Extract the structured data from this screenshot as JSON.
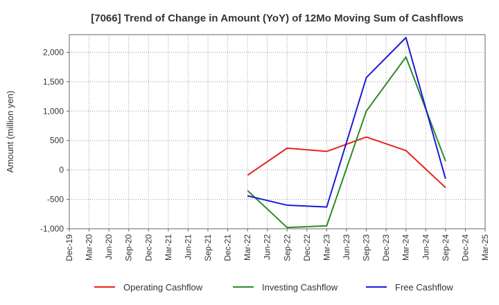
{
  "chart_data": {
    "type": "line",
    "title": "[7066]  Trend of Change in Amount (YoY) of 12Mo Moving Sum of Cashflows",
    "xlabel": "",
    "ylabel": "Amount (million yen)",
    "ylim": [
      -1000,
      2300
    ],
    "yticks": [
      -1000,
      -500,
      0,
      500,
      1000,
      1500,
      2000
    ],
    "ytick_labels": [
      "-1,000",
      "-500",
      "0",
      "500",
      "1,000",
      "1,500",
      "2,000"
    ],
    "categories": [
      "Dec-19",
      "Mar-20",
      "Jun-20",
      "Sep-20",
      "Dec-20",
      "Mar-21",
      "Jun-21",
      "Sep-21",
      "Dec-21",
      "Mar-22",
      "Jun-22",
      "Sep-22",
      "Dec-22",
      "Mar-23",
      "Jun-23",
      "Sep-23",
      "Dec-23",
      "Mar-24",
      "Jun-24",
      "Sep-24",
      "Dec-24",
      "Mar-25"
    ],
    "grid": true,
    "legend_position": "bottom",
    "series": [
      {
        "name": "Operating Cashflow",
        "color": "#e8221b",
        "points": [
          [
            "Mar-22",
            -90
          ],
          [
            "Sep-22",
            370
          ],
          [
            "Mar-23",
            315
          ],
          [
            "Sep-23",
            560
          ],
          [
            "Mar-24",
            330
          ],
          [
            "Sep-24",
            -300
          ]
        ]
      },
      {
        "name": "Investing Cashflow",
        "color": "#2a8a2a",
        "points": [
          [
            "Mar-22",
            -350
          ],
          [
            "Sep-22",
            -980
          ],
          [
            "Mar-23",
            -950
          ],
          [
            "Sep-23",
            1000
          ],
          [
            "Mar-24",
            1920
          ],
          [
            "Sep-24",
            150
          ]
        ]
      },
      {
        "name": "Free Cashflow",
        "color": "#1a1ad8",
        "points": [
          [
            "Mar-22",
            -440
          ],
          [
            "Sep-22",
            -600
          ],
          [
            "Mar-23",
            -630
          ],
          [
            "Sep-23",
            1570
          ],
          [
            "Mar-24",
            2250
          ],
          [
            "Sep-24",
            -150
          ]
        ]
      }
    ]
  }
}
